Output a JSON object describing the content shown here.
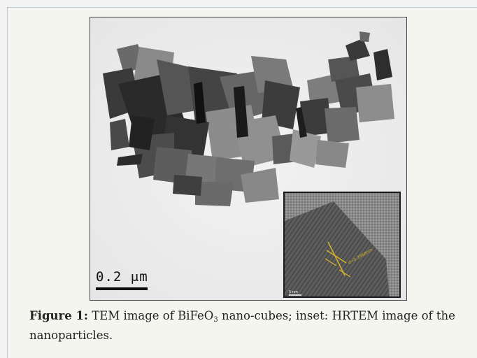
{
  "figure": {
    "scale_bar_label": "0.2 μm",
    "inset_scale_label": "5 nm",
    "inset_annotation": "d=0.3968nm"
  },
  "caption": {
    "label": "Figure 1:",
    "text_before": " TEM image of BiFeO",
    "subscript": "3",
    "text_after": " nano-cubes; inset: HRTEM image of the nanoparticles."
  },
  "colors": {
    "panel_background": "#f5f5f0",
    "panel_border": "#b6c8da",
    "annotation_yellow": "#d9b52a"
  }
}
